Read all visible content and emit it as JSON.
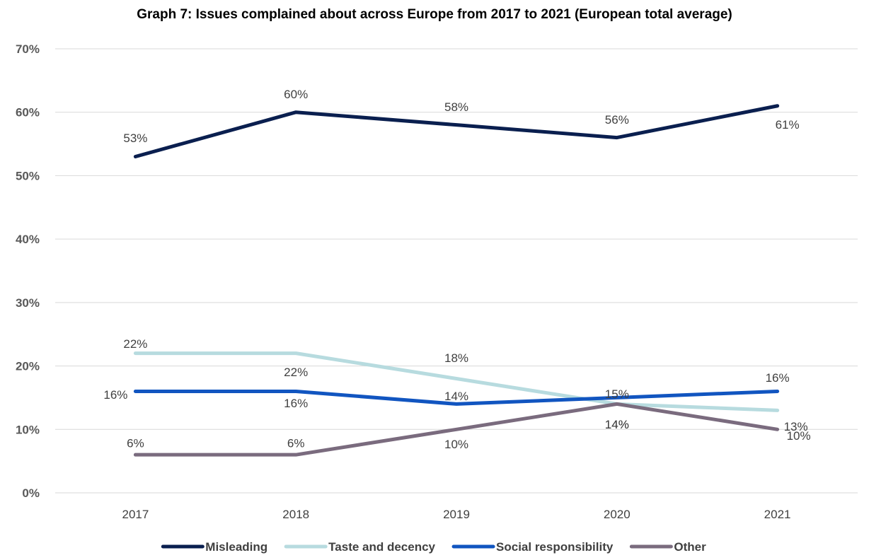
{
  "chart_data": {
    "type": "line",
    "title": "Graph 7: Issues complained about across Europe from 2017 to 2021 (European total average)",
    "x": [
      "2017",
      "2018",
      "2019",
      "2020",
      "2021"
    ],
    "ylim": [
      0,
      70
    ],
    "yticks": [
      "0%",
      "10%",
      "20%",
      "30%",
      "40%",
      "50%",
      "60%",
      "70%"
    ],
    "grid": true,
    "legend_position": "bottom",
    "series": [
      {
        "name": "Misleading",
        "color": "#0a1f4f",
        "values": [
          53,
          60,
          58,
          56,
          61
        ],
        "labels": [
          "53%",
          "60%",
          "58%",
          "56%",
          "61%"
        ]
      },
      {
        "name": "Taste and decency",
        "color": "#b7dbdf",
        "values": [
          22,
          22,
          18,
          14,
          13
        ],
        "labels": [
          "22%",
          "22%",
          "18%",
          "14%",
          "13%"
        ]
      },
      {
        "name": "Social responsibility",
        "color": "#1155c0",
        "values": [
          16,
          16,
          14,
          15,
          16
        ],
        "labels": [
          "16%",
          "16%",
          "14%",
          "15%",
          "16%"
        ]
      },
      {
        "name": "Other",
        "color": "#7a6b7e",
        "values": [
          6,
          6,
          10,
          14,
          10
        ],
        "labels": [
          "6%",
          "6%",
          "10%",
          "14%",
          "10%"
        ]
      }
    ]
  }
}
